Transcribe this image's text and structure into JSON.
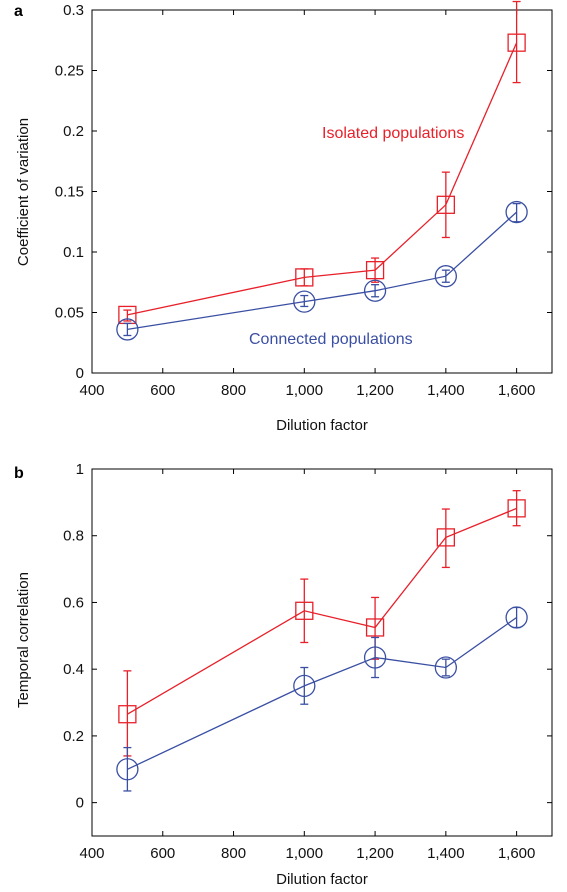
{
  "chart_data": [
    {
      "type": "line",
      "panel_label": "a",
      "xlabel": "Dilution factor",
      "ylabel": "Coefficient of variation",
      "xlim": [
        400,
        1700
      ],
      "ylim": [
        0,
        0.3
      ],
      "xticks": [
        400,
        600,
        800,
        1000,
        1200,
        1400,
        1600
      ],
      "xtick_labels": [
        "400",
        "600",
        "800",
        "1,000",
        "1,200",
        "1,400",
        "1,600"
      ],
      "yticks": [
        0,
        0.05,
        0.1,
        0.15,
        0.2,
        0.25,
        0.3
      ],
      "ytick_labels": [
        "0",
        "0.05",
        "0.1",
        "0.15",
        "0.2",
        "0.25",
        "0.3"
      ],
      "grid": false,
      "annotations": [
        {
          "text": "Isolated populations",
          "color": "#e8202a"
        },
        {
          "text": "Connected populations",
          "color": "#3a4fa3"
        }
      ],
      "series": [
        {
          "color": "#e8202a",
          "marker": "square",
          "x": [
            500,
            1000,
            1200,
            1400,
            1600
          ],
          "y": [
            0.048,
            0.079,
            0.085,
            0.139,
            0.273
          ],
          "yerr_low": [
            0.043,
            0.072,
            0.075,
            0.112,
            0.24
          ],
          "yerr_high": [
            0.052,
            0.086,
            0.095,
            0.166,
            0.307
          ]
        },
        {
          "color": "#3a4fa3",
          "marker": "circle",
          "x": [
            500,
            1000,
            1200,
            1400,
            1600
          ],
          "y": [
            0.036,
            0.059,
            0.068,
            0.08,
            0.133
          ],
          "yerr_low": [
            0.031,
            0.055,
            0.063,
            0.075,
            0.125
          ],
          "yerr_high": [
            0.041,
            0.064,
            0.073,
            0.085,
            0.14
          ]
        }
      ]
    },
    {
      "type": "line",
      "panel_label": "b",
      "xlabel": "Dilution factor",
      "ylabel": "Temporal correlation",
      "xlim": [
        400,
        1700
      ],
      "ylim": [
        -0.1,
        1.0
      ],
      "xticks": [
        400,
        600,
        800,
        1000,
        1200,
        1400,
        1600
      ],
      "xtick_labels": [
        "400",
        "600",
        "800",
        "1,000",
        "1,200",
        "1,400",
        "1,600"
      ],
      "yticks": [
        0,
        0.2,
        0.4,
        0.6,
        0.8,
        1.0
      ],
      "ytick_labels": [
        "0",
        "0.2",
        "0.4",
        "0.6",
        "0.8",
        "1"
      ],
      "grid": false,
      "series": [
        {
          "color": "#e8202a",
          "marker": "square",
          "x": [
            500,
            1000,
            1200,
            1400,
            1600
          ],
          "y": [
            0.265,
            0.575,
            0.525,
            0.795,
            0.882
          ],
          "yerr_low": [
            0.14,
            0.48,
            0.43,
            0.705,
            0.83
          ],
          "yerr_high": [
            0.395,
            0.67,
            0.615,
            0.88,
            0.935
          ]
        },
        {
          "color": "#3a4fa3",
          "marker": "circle",
          "x": [
            500,
            1000,
            1200,
            1400,
            1600
          ],
          "y": [
            0.1,
            0.35,
            0.435,
            0.405,
            0.555
          ],
          "yerr_low": [
            0.035,
            0.295,
            0.375,
            0.38,
            0.525
          ],
          "yerr_high": [
            0.165,
            0.405,
            0.495,
            0.43,
            0.585
          ]
        }
      ]
    }
  ]
}
